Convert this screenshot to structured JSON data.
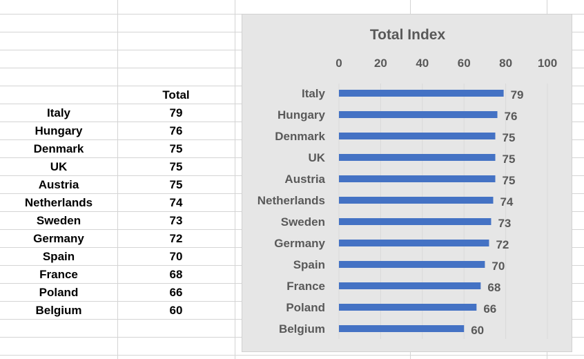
{
  "sheet": {
    "header": "Total",
    "rows": [
      {
        "country": "Italy",
        "total": "79"
      },
      {
        "country": "Hungary",
        "total": "76"
      },
      {
        "country": "Denmark",
        "total": "75"
      },
      {
        "country": "UK",
        "total": "75"
      },
      {
        "country": "Austria",
        "total": "75"
      },
      {
        "country": "Netherlands",
        "total": "74"
      },
      {
        "country": "Sweden",
        "total": "73"
      },
      {
        "country": "Germany",
        "total": "72"
      },
      {
        "country": "Spain",
        "total": "70"
      },
      {
        "country": "France",
        "total": "68"
      },
      {
        "country": "Poland",
        "total": "66"
      },
      {
        "country": "Belgium",
        "total": "60"
      }
    ]
  },
  "chart_data": {
    "type": "bar",
    "orientation": "horizontal",
    "title": "Total Index",
    "categories": [
      "Italy",
      "Hungary",
      "Denmark",
      "UK",
      "Austria",
      "Netherlands",
      "Sweden",
      "Germany",
      "Spain",
      "France",
      "Poland",
      "Belgium"
    ],
    "values": [
      79,
      76,
      75,
      75,
      75,
      74,
      73,
      72,
      70,
      68,
      66,
      60
    ],
    "xlim": [
      0,
      100
    ],
    "xticks": [
      "0",
      "20",
      "40",
      "60",
      "80",
      "100"
    ],
    "xaxis_position": "top",
    "grid": true,
    "data_labels": true,
    "bar_color": "#4472c4",
    "text_color": "#595959",
    "background": "#e6e6e6"
  }
}
